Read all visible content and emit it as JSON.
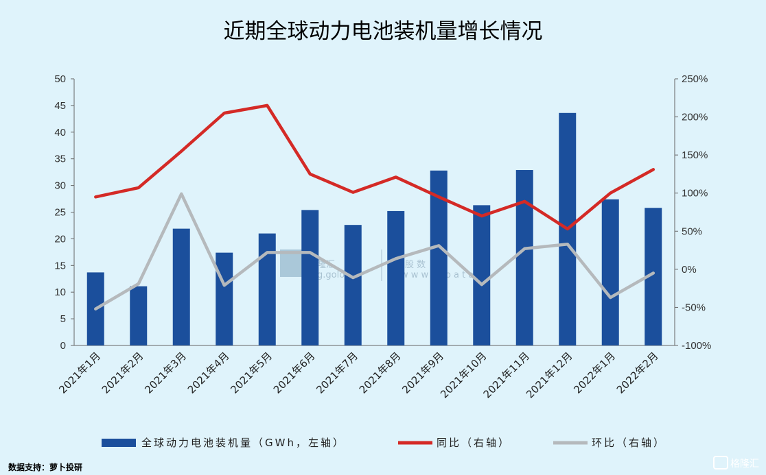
{
  "chart_data": {
    "type": "bar",
    "title": "近期全球动力电池装机量增长情况",
    "categories": [
      "2021年1月",
      "2021年2月",
      "2021年3月",
      "2021年4月",
      "2021年5月",
      "2021年6月",
      "2021年7月",
      "2021年8月",
      "2021年9月",
      "2021年10月",
      "2021年11月",
      "2021年12月",
      "2022年1月",
      "2022年2月"
    ],
    "series": [
      {
        "name": "全球动力电池装机量（GWh，左轴）",
        "type": "bar",
        "axis": "left",
        "color": "#1b4f9c",
        "values": [
          13.7,
          11.1,
          21.9,
          17.4,
          21.0,
          25.4,
          22.6,
          25.2,
          32.8,
          26.3,
          32.9,
          43.6,
          27.4,
          25.8
        ]
      },
      {
        "name": "同比（右轴）",
        "type": "line",
        "axis": "right",
        "color": "#d42a26",
        "values": [
          95,
          107,
          155,
          205,
          215,
          125,
          101,
          121,
          95,
          70,
          89,
          53,
          100,
          131
        ]
      },
      {
        "name": "环比（右轴）",
        "type": "line",
        "axis": "right",
        "color": "#b5b9bc",
        "values": [
          -52,
          -19,
          99,
          -21,
          22,
          22,
          -11,
          14,
          31,
          -20,
          27,
          33,
          -37,
          -5
        ]
      }
    ],
    "yleft": {
      "min": 0,
      "max": 50,
      "step": 5,
      "ticks": [
        "0",
        "5",
        "10",
        "15",
        "20",
        "25",
        "30",
        "35",
        "40",
        "45",
        "50"
      ]
    },
    "yright": {
      "min": -100,
      "max": 250,
      "step": 50,
      "ticks": [
        "-100%",
        "-50%",
        "0%",
        "50%",
        "100%",
        "150%",
        "200%",
        "250%"
      ]
    },
    "grid": false,
    "legend_position": "bottom"
  },
  "source": "数据支持：萝卜投研",
  "watermark": {
    "logo_text": "格隆汇",
    "left_text": "隆汇",
    "left_url": "g.golong",
    "right_text": "股 数",
    "right_url": "w w w . g o       a t a . c",
    "corner": "格隆汇"
  }
}
